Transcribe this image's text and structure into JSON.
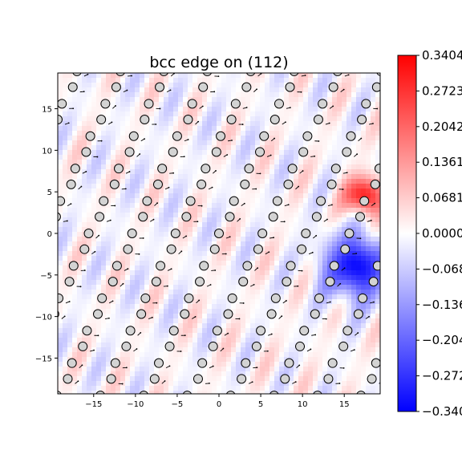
{
  "chart_data": {
    "type": "heatmap",
    "title": "bcc edge on (112)",
    "xlabel": "",
    "ylabel": "",
    "xlim": [
      -19.3,
      19.3
    ],
    "ylim": [
      -19.3,
      19.3
    ],
    "xticks": [
      -15,
      -10,
      -5,
      0,
      5,
      10,
      15
    ],
    "yticks": [
      -15,
      -10,
      -5,
      0,
      5,
      10,
      15
    ],
    "xtick_labels": [
      "−15",
      "−10",
      "−5",
      "0",
      "5",
      "10",
      "15"
    ],
    "ytick_labels": [
      "−15",
      "−10",
      "−5",
      "0",
      "5",
      "10",
      "15"
    ],
    "colormap": "bwr",
    "colorbar_range": [
      -0.3404,
      0.3404
    ],
    "colorbar_ticks": [
      0.3404,
      0.2723,
      0.2042,
      0.1361,
      0.0681,
      0.0,
      -0.0681,
      -0.1361,
      -0.2042,
      -0.2723,
      -0.3404
    ],
    "colorbar_labels": [
      "0.3404",
      "0.2723",
      "0.2042",
      "0.1361",
      "0.0681",
      "0.0000",
      "−0.0681",
      "−0.1361",
      "−0.2042",
      "−0.2723",
      "−0.3404"
    ],
    "field_features": [
      {
        "kind": "stripes",
        "direction": "diagonal",
        "amplitude": 0.08
      },
      {
        "kind": "positive_peak",
        "center": [
          17.5,
          4.5
        ],
        "value": 0.34
      },
      {
        "kind": "negative_peak",
        "center": [
          16.5,
          -4.0
        ],
        "value": -0.34
      }
    ],
    "atoms": {
      "marker": "circle",
      "fill": "#d3d3d3",
      "edge": "#000000",
      "lattice_a1": [
        -1.8,
        -3.9
      ],
      "lattice_a2": [
        5.2,
        0.0
      ],
      "basis_shift": [
        1.3,
        2.0
      ]
    },
    "arrows": {
      "color": "#000000",
      "description": "small displacement vectors between atoms"
    }
  }
}
